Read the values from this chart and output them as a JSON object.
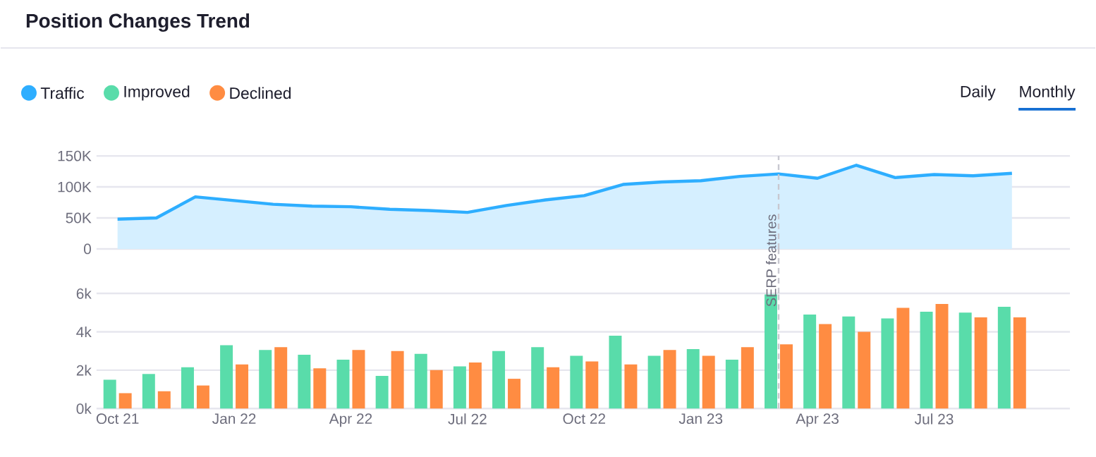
{
  "chart_data": [
    {
      "type": "area",
      "title": "Position Changes Trend",
      "x": [
        "2021-10",
        "2021-11",
        "2021-12",
        "2022-01",
        "2022-02",
        "2022-03",
        "2022-04",
        "2022-05",
        "2022-06",
        "2022-07",
        "2022-08",
        "2022-09",
        "2022-10",
        "2022-11",
        "2022-12",
        "2023-01",
        "2023-02",
        "2023-03",
        "2023-04",
        "2023-05",
        "2023-06",
        "2023-07",
        "2023-08",
        "2023-09"
      ],
      "series": [
        {
          "name": "Traffic",
          "color": "#2eaeff",
          "values": [
            48000,
            50000,
            84000,
            78000,
            72000,
            69000,
            68000,
            64000,
            62000,
            59000,
            70000,
            79000,
            86000,
            104000,
            108000,
            110000,
            117000,
            121000,
            114000,
            135000,
            115000,
            120000,
            118000,
            122000
          ]
        }
      ],
      "xlim": [
        "2021-09-15",
        "2023-10-16"
      ],
      "ylim": [
        0,
        150000
      ],
      "yticks": [
        {
          "value": 0,
          "label": "0"
        },
        {
          "value": 50000,
          "label": "50K"
        },
        {
          "value": 100000,
          "label": "100K"
        },
        {
          "value": 150000,
          "label": "150K"
        }
      ],
      "tick_labels": "y",
      "grid": "y",
      "legend": "top left",
      "ref_lines": [
        {
          "axis": "x",
          "value": "2023-03",
          "color": "#c8c8d0",
          "line_style": "dashed"
        }
      ],
      "annotations": [
        "Daily",
        "Monthly"
      ]
    },
    {
      "type": "bar",
      "x": [
        "2021-10",
        "2021-11",
        "2021-12",
        "2022-01",
        "2022-02",
        "2022-03",
        "2022-04",
        "2022-05",
        "2022-06",
        "2022-07",
        "2022-08",
        "2022-09",
        "2022-10",
        "2022-11",
        "2022-12",
        "2023-01",
        "2023-02",
        "2023-03",
        "2023-04",
        "2023-05",
        "2023-06",
        "2023-07",
        "2023-08",
        "2023-09"
      ],
      "series": [
        {
          "name": "Improved",
          "color": "#59dcaa",
          "values": [
            1500,
            1800,
            2150,
            3300,
            3050,
            2800,
            2550,
            1700,
            2850,
            2200,
            3000,
            3200,
            2750,
            3800,
            2750,
            3100,
            2550,
            5950,
            4900,
            4800,
            4700,
            5050,
            5000,
            5300
          ]
        },
        {
          "name": "Declined",
          "color": "#ff8c42",
          "values": [
            800,
            900,
            1200,
            2300,
            3200,
            2100,
            3050,
            3000,
            2000,
            2400,
            1550,
            2150,
            2450,
            2300,
            3050,
            2750,
            3200,
            3350,
            4400,
            4000,
            5250,
            5450,
            4750,
            4750
          ]
        }
      ],
      "xlim": [
        "2021-09-15",
        "2023-10-16"
      ],
      "ylim": [
        0,
        6000
      ],
      "xticks": [
        {
          "value": "2021-10",
          "label": "Oct 21"
        },
        {
          "value": "2022-01",
          "label": "Jan 22"
        },
        {
          "value": "2022-04",
          "label": "Apr 22"
        },
        {
          "value": "2022-07",
          "label": "Jul 22"
        },
        {
          "value": "2022-10",
          "label": "Oct 22"
        },
        {
          "value": "2023-01",
          "label": "Jan 23"
        },
        {
          "value": "2023-04",
          "label": "Apr 23"
        },
        {
          "value": "2023-07",
          "label": "Jul 23"
        }
      ],
      "yticks": [
        {
          "value": 0,
          "label": "0k"
        },
        {
          "value": 2000,
          "label": "2k"
        },
        {
          "value": 4000,
          "label": "4k"
        },
        {
          "value": 6000,
          "label": "6k"
        }
      ],
      "grid": "y",
      "legend": "top left",
      "ref_lines": [
        {
          "axis": "x",
          "value": "2023-03",
          "label": "SERP features",
          "color": "#c8c8d0",
          "line_style": "dashed"
        }
      ]
    }
  ]
}
